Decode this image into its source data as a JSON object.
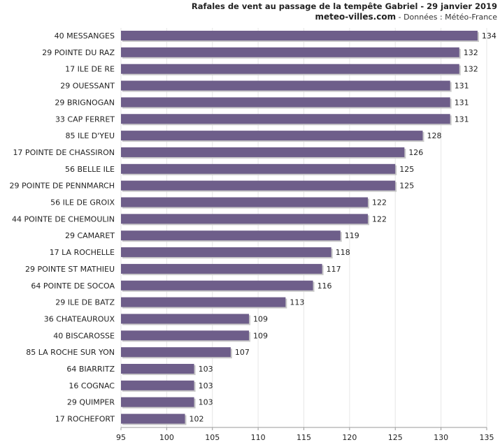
{
  "header": {
    "title": "Rafales de vent au passage de la tempête Gabriel - 29 janvier 2019",
    "site": "meteo-villes.com",
    "source": " - Données : Météo-France"
  },
  "colors": {
    "bar": "#6e5e8a",
    "bar_shadow": "#c9c9c9",
    "grid": "#e6e6e6",
    "axis": "#9a9a9a"
  },
  "chart_data": {
    "type": "bar",
    "orientation": "horizontal",
    "title": "Rafales de vent au passage de la tempête Gabriel - 29 janvier 2019",
    "subtitle": "meteo-villes.com - Données : Météo-France",
    "categories": [
      "40 MESSANGES",
      "29 POINTE DU RAZ",
      "17 ILE DE RE",
      "29 OUESSANT",
      "29 BRIGNOGAN",
      "33 CAP FERRET",
      "85 ILE D'YEU",
      "17 POINTE DE CHASSIRON",
      "56 BELLE ILE",
      "29 POINTE DE PENNMARCH",
      "56 ILE DE GROIX",
      "44 POINTE DE CHEMOULIN",
      "29 CAMARET",
      "17 LA ROCHELLE",
      "29 POINTE ST MATHIEU",
      "64 POINTE DE SOCOA",
      "29 ILE DE BATZ",
      "36 CHATEAUROUX",
      "40 BISCAROSSE",
      "85 LA ROCHE SUR YON",
      "64 BIARRITZ",
      "16 COGNAC",
      "29 QUIMPER",
      "17 ROCHEFORT"
    ],
    "values": [
      134,
      132,
      132,
      131,
      131,
      131,
      128,
      126,
      125,
      125,
      122,
      122,
      119,
      118,
      117,
      116,
      113,
      109,
      109,
      107,
      103,
      103,
      103,
      102
    ],
    "xlim": [
      95,
      135
    ],
    "xticks": [
      95,
      100,
      105,
      110,
      115,
      120,
      125,
      130,
      135
    ],
    "grid": true,
    "data_labels": true
  }
}
